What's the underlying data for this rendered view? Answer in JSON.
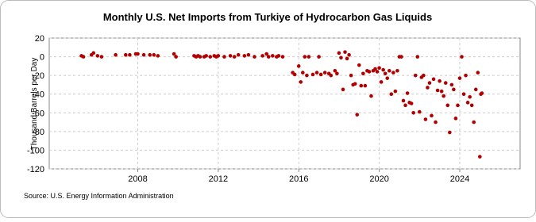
{
  "chart_data": {
    "type": "scatter",
    "title": "Monthly U.S. Net Imports from Turkiye of Hydrocarbon Gas Liquids",
    "ylabel": "Thousand Barrels per Day",
    "source": "Source: U.S. Energy Information Administration",
    "color": "#b20000",
    "grid": true,
    "xlim": [
      2003.6,
      2027.0
    ],
    "ylim": [
      -120,
      20
    ],
    "xticks": [
      2008,
      2012,
      2016,
      2020,
      2024
    ],
    "yticks": [
      -120,
      -100,
      -80,
      -60,
      -40,
      -20,
      0,
      20
    ],
    "x": [
      2005.2,
      2005.3,
      2005.7,
      2005.8,
      2006.0,
      2006.2,
      2006.9,
      2007.4,
      2007.6,
      2007.9,
      2008.0,
      2008.3,
      2008.6,
      2008.8,
      2009.0,
      2009.8,
      2009.9,
      2010.8,
      2010.9,
      2011.0,
      2011.1,
      2011.3,
      2011.4,
      2011.6,
      2011.8,
      2011.9,
      2012.0,
      2012.3,
      2012.6,
      2012.8,
      2013.0,
      2013.3,
      2013.5,
      2013.8,
      2014.2,
      2014.4,
      2014.5,
      2014.7,
      2014.9,
      2015.0,
      2015.2,
      2015.7,
      2015.8,
      2016.0,
      2016.1,
      2016.2,
      2016.3,
      2016.4,
      2016.5,
      2016.7,
      2016.9,
      2017.0,
      2017.1,
      2017.3,
      2017.5,
      2017.6,
      2017.8,
      2017.9,
      2018.0,
      2018.1,
      2018.2,
      2018.3,
      2018.4,
      2018.5,
      2018.6,
      2018.7,
      2018.8,
      2018.9,
      2019.0,
      2019.1,
      2019.2,
      2019.3,
      2019.4,
      2019.5,
      2019.6,
      2019.7,
      2019.8,
      2019.9,
      2020.0,
      2020.1,
      2020.2,
      2020.3,
      2020.4,
      2020.5,
      2020.6,
      2020.7,
      2020.8,
      2020.9,
      2021.0,
      2021.1,
      2021.2,
      2021.3,
      2021.4,
      2021.5,
      2021.6,
      2021.7,
      2021.8,
      2021.9,
      2022.0,
      2022.1,
      2022.2,
      2022.3,
      2022.4,
      2022.5,
      2022.6,
      2022.7,
      2022.8,
      2022.9,
      2023.0,
      2023.1,
      2023.2,
      2023.3,
      2023.4,
      2023.5,
      2023.6,
      2023.7,
      2023.8,
      2023.9,
      2024.0,
      2024.1,
      2024.2,
      2024.3,
      2024.4,
      2024.5,
      2024.6,
      2024.7,
      2024.8,
      2024.9,
      2025.0,
      2025.05,
      2025.1
    ],
    "values": [
      1,
      0,
      2,
      4,
      1,
      0,
      2,
      2,
      2,
      3,
      3,
      2,
      2,
      2,
      1,
      3,
      0,
      1,
      0,
      1,
      0,
      0,
      1,
      0,
      1,
      0,
      1,
      0,
      1,
      0,
      2,
      1,
      2,
      0,
      1,
      3,
      0,
      1,
      0,
      1,
      0,
      -17,
      -19,
      -10,
      -27,
      -17,
      0,
      -20,
      0,
      -19,
      -17,
      0,
      -19,
      -17,
      -18,
      -20,
      -15,
      -18,
      4,
      -1,
      -35,
      5,
      -2,
      2,
      -20,
      -30,
      -29,
      -62,
      -9,
      -31,
      -18,
      -31,
      -15,
      -16,
      -42,
      -15,
      -13,
      -16,
      -12,
      -27,
      -14,
      -18,
      -23,
      -15,
      -40,
      -17,
      -37,
      -15,
      0,
      0,
      -47,
      -52,
      -39,
      -49,
      -50,
      -60,
      -20,
      0,
      -59,
      -22,
      -20,
      -67,
      -33,
      -28,
      -63,
      -24,
      -70,
      -36,
      -26,
      -37,
      -42,
      -28,
      -52,
      -81,
      -30,
      -35,
      -66,
      -52,
      -23,
      0,
      -40,
      -20,
      -49,
      -43,
      -52,
      -70,
      -35,
      -17,
      -107,
      -40,
      -39
    ]
  }
}
